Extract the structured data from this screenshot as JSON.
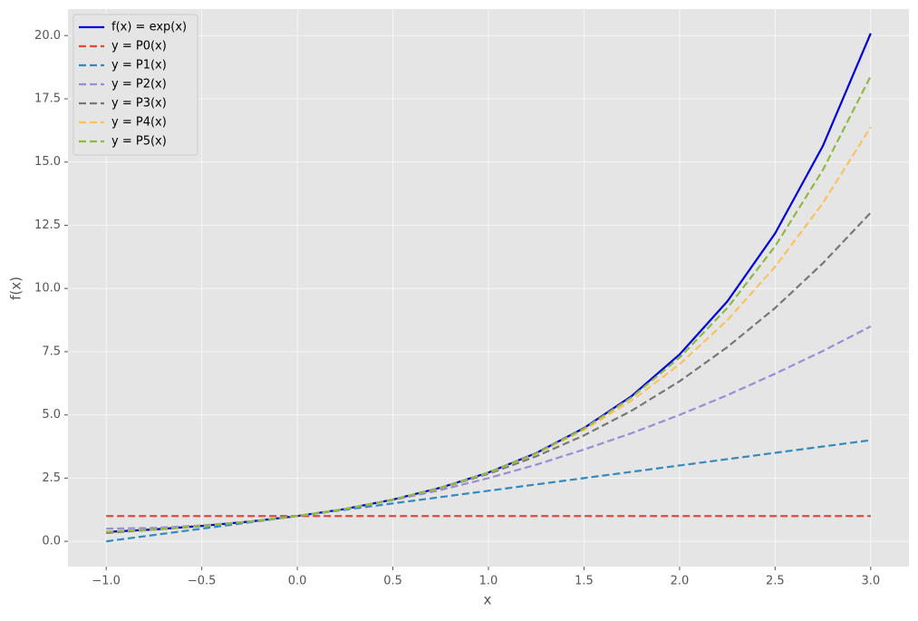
{
  "chart_data": {
    "type": "line",
    "xlabel": "x",
    "ylabel": "f(x)",
    "x": [
      -1,
      -0.75,
      -0.5,
      -0.25,
      0,
      0.25,
      0.5,
      0.75,
      1,
      1.25,
      1.5,
      1.75,
      2,
      2.25,
      2.5,
      2.75,
      3
    ],
    "series": [
      {
        "name": "f(x) = exp(x)",
        "color": "#0000dd",
        "linestyle": "solid",
        "values": [
          0.37,
          0.47,
          0.61,
          0.78,
          1,
          1.28,
          1.65,
          2.12,
          2.72,
          3.49,
          4.48,
          5.75,
          7.39,
          9.49,
          12.18,
          15.64,
          20.09
        ]
      },
      {
        "name": "y = P0(x)",
        "color": "#E24A33",
        "linestyle": "dashed",
        "values": [
          1,
          1,
          1,
          1,
          1,
          1,
          1,
          1,
          1,
          1,
          1,
          1,
          1,
          1,
          1,
          1,
          1
        ]
      },
      {
        "name": "y = P1(x)",
        "color": "#348ABD",
        "linestyle": "dashed",
        "values": [
          0,
          0.25,
          0.5,
          0.75,
          1,
          1.25,
          1.5,
          1.75,
          2,
          2.25,
          2.5,
          2.75,
          3,
          3.25,
          3.5,
          3.75,
          4
        ]
      },
      {
        "name": "y = P2(x)",
        "color": "#988ED5",
        "linestyle": "dashed",
        "values": [
          0.5,
          0.53,
          0.63,
          0.78,
          1,
          1.28,
          1.63,
          2.03,
          2.5,
          3.03,
          3.63,
          4.28,
          5,
          5.78,
          6.63,
          7.53,
          8.5
        ]
      },
      {
        "name": "y = P3(x)",
        "color": "#777777",
        "linestyle": "dashed",
        "values": [
          0.33,
          0.46,
          0.6,
          0.78,
          1,
          1.28,
          1.65,
          2.1,
          2.67,
          3.36,
          4.19,
          5.17,
          6.33,
          7.68,
          9.23,
          11,
          13
        ]
      },
      {
        "name": "y = P4(x)",
        "color": "#FBC15E",
        "linestyle": "dashed",
        "values": [
          0.38,
          0.47,
          0.61,
          0.78,
          1,
          1.28,
          1.65,
          2.11,
          2.71,
          3.46,
          4.4,
          5.57,
          7,
          8.75,
          10.86,
          13.38,
          16.38
        ]
      },
      {
        "name": "y = P5(x)",
        "color": "#8EBA42",
        "linestyle": "dashed",
        "values": [
          0.37,
          0.47,
          0.61,
          0.78,
          1,
          1.28,
          1.65,
          2.12,
          2.72,
          3.48,
          4.46,
          5.7,
          7.27,
          9.23,
          11.67,
          14.69,
          18.4
        ]
      }
    ],
    "xlim": [
      -1.2,
      3.2
    ],
    "xticks": [
      {
        "value": -1,
        "label": "−1.0"
      },
      {
        "value": -0.5,
        "label": "−0.5"
      },
      {
        "value": 0,
        "label": "0.0"
      },
      0.5,
      {
        "value": 1,
        "label": "1.0"
      },
      1.5,
      {
        "value": 2,
        "label": "2.0"
      },
      2.5,
      {
        "value": 3,
        "label": "3.0"
      }
    ],
    "ylim": [
      -1.0,
      21.05
    ],
    "yticks": [
      {
        "value": 0,
        "label": "0.0"
      },
      2.5,
      {
        "value": 5,
        "label": "5.0"
      },
      7.5,
      {
        "value": 10,
        "label": "10.0"
      },
      12.5,
      {
        "value": 15,
        "label": "15.0"
      },
      17.5,
      {
        "value": 20,
        "label": "20.0"
      }
    ],
    "grid": true,
    "legend": "upper left"
  }
}
